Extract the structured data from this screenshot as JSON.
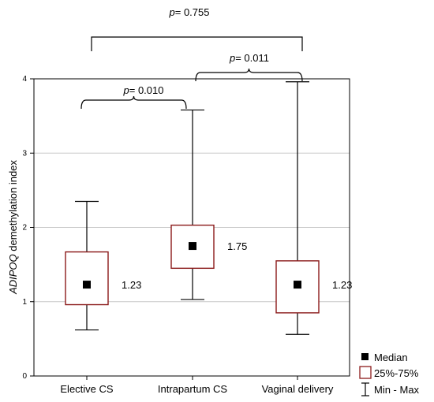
{
  "chart_data": {
    "type": "box",
    "ylabel": {
      "italic": "ADIPOQ",
      "rest": " demethylation index"
    },
    "ylim": [
      0,
      4
    ],
    "yticks": [
      "0",
      "1",
      "2",
      "3",
      "4"
    ],
    "grid": true,
    "categories": [
      "Elective CS",
      "Intrapartum CS",
      "Vaginal delivery"
    ],
    "boxes": [
      {
        "category": "Elective CS",
        "min": 0.62,
        "q1": 0.96,
        "median": 1.23,
        "q3": 1.67,
        "max": 2.35,
        "median_label": "1.23"
      },
      {
        "category": "Intrapartum CS",
        "min": 1.03,
        "q1": 1.45,
        "median": 1.75,
        "q3": 2.03,
        "max": 3.58,
        "median_label": "1.75"
      },
      {
        "category": "Vaginal delivery",
        "min": 0.56,
        "q1": 0.85,
        "median": 1.23,
        "q3": 1.55,
        "max": 3.96,
        "median_label": "1.23"
      }
    ],
    "comparisons": [
      {
        "between": [
          "Elective CS",
          "Intrapartum CS"
        ],
        "p_prefix": "p",
        "p_rest": "= 0.010"
      },
      {
        "between": [
          "Intrapartum CS",
          "Vaginal delivery"
        ],
        "p_prefix": "p",
        "p_rest": "= 0.011"
      },
      {
        "between": [
          "Elective CS",
          "Vaginal delivery"
        ],
        "p_prefix": "p",
        "p_rest": "= 0.755"
      }
    ],
    "legend": {
      "position": "bottom-right",
      "items": [
        {
          "symbol": "filled-square",
          "label": "Median"
        },
        {
          "symbol": "open-box",
          "label": "25%-75%"
        },
        {
          "symbol": "whisker",
          "label": "Min - Max"
        }
      ]
    },
    "colors": {
      "box": "#8B1A1A",
      "marker": "#000000",
      "whisker": "#000000",
      "grid": "#c8c8c8"
    }
  }
}
